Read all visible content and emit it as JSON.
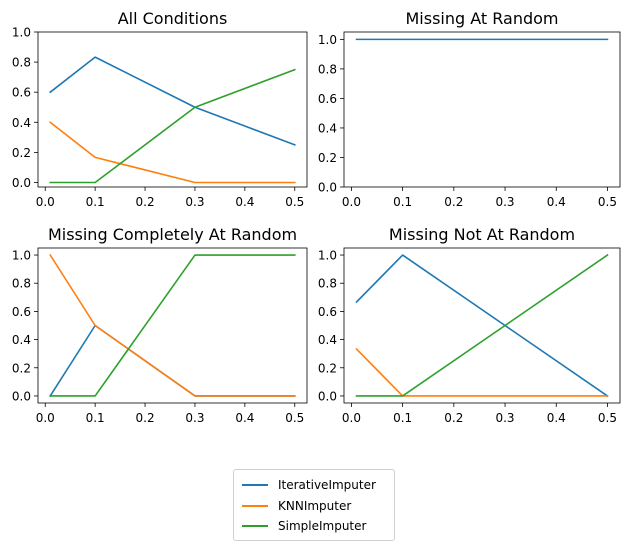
{
  "chart_data": [
    {
      "type": "line",
      "title": "All Conditions",
      "x": [
        0.01,
        0.1,
        0.3,
        0.5
      ],
      "xticks": [
        "0.0",
        "0.1",
        "0.2",
        "0.3",
        "0.4",
        "0.5"
      ],
      "yticks": [
        "0.0",
        "0.2",
        "0.4",
        "0.6",
        "0.8",
        "1.0"
      ],
      "ylim": [
        -0.03,
        1.0
      ],
      "series": [
        {
          "name": "IterativeImputer",
          "values": [
            0.6,
            0.833,
            0.5,
            0.25
          ]
        },
        {
          "name": "KNNImputer",
          "values": [
            0.4,
            0.167,
            0.0,
            0.0
          ]
        },
        {
          "name": "SimpleImputer",
          "values": [
            0.0,
            0.0,
            0.5,
            0.75
          ]
        }
      ]
    },
    {
      "type": "line",
      "title": "Missing At Random",
      "x": [
        0.01,
        0.1,
        0.3,
        0.5
      ],
      "xticks": [
        "0.0",
        "0.1",
        "0.2",
        "0.3",
        "0.4",
        "0.5"
      ],
      "yticks": [
        "0.0",
        "0.2",
        "0.4",
        "0.6",
        "0.8",
        "1.0"
      ],
      "ylim": [
        0.0,
        1.05
      ],
      "series": [
        {
          "name": "IterativeImputer",
          "values": [
            1.0,
            1.0,
            1.0,
            1.0
          ]
        }
      ]
    },
    {
      "type": "line",
      "title": "Missing Completely At Random",
      "x": [
        0.01,
        0.1,
        0.3,
        0.5
      ],
      "xticks": [
        "0.0",
        "0.1",
        "0.2",
        "0.3",
        "0.4",
        "0.5"
      ],
      "yticks": [
        "0.0",
        "0.2",
        "0.4",
        "0.6",
        "0.8",
        "1.0"
      ],
      "ylim": [
        -0.05,
        1.05
      ],
      "series": [
        {
          "name": "IterativeImputer",
          "values": [
            0.0,
            0.5,
            0.0,
            0.0
          ]
        },
        {
          "name": "KNNImputer",
          "values": [
            1.0,
            0.5,
            0.0,
            0.0
          ]
        },
        {
          "name": "SimpleImputer",
          "values": [
            0.0,
            0.0,
            1.0,
            1.0
          ]
        }
      ]
    },
    {
      "type": "line",
      "title": "Missing Not At Random",
      "x": [
        0.01,
        0.1,
        0.3,
        0.5
      ],
      "xticks": [
        "0.0",
        "0.1",
        "0.2",
        "0.3",
        "0.4",
        "0.5"
      ],
      "yticks": [
        "0.0",
        "0.2",
        "0.4",
        "0.6",
        "0.8",
        "1.0"
      ],
      "ylim": [
        -0.05,
        1.05
      ],
      "series": [
        {
          "name": "IterativeImputer",
          "values": [
            0.667,
            1.0,
            0.5,
            0.0
          ]
        },
        {
          "name": "KNNImputer",
          "values": [
            0.333,
            0.0,
            0.0,
            0.0
          ]
        },
        {
          "name": "SimpleImputer",
          "values": [
            0.0,
            0.0,
            0.5,
            1.0
          ]
        }
      ]
    }
  ],
  "legend": {
    "items": [
      {
        "label": "IterativeImputer",
        "color": "#1f77b4"
      },
      {
        "label": "KNNImputer",
        "color": "#ff7f0e"
      },
      {
        "label": "SimpleImputer",
        "color": "#2ca02c"
      }
    ]
  },
  "colors": {
    "IterativeImputer": "#1f77b4",
    "KNNImputer": "#ff7f0e",
    "SimpleImputer": "#2ca02c"
  }
}
